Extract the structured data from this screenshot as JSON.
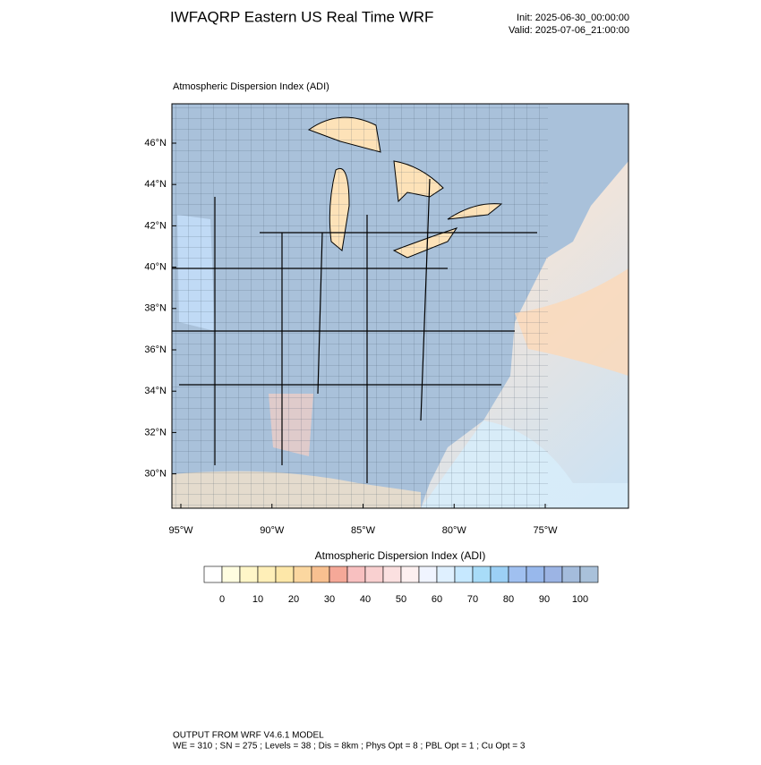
{
  "header": {
    "title": "IWFAQRP Eastern US Real Time WRF",
    "init": "Init: 2025-06-30_00:00:00",
    "valid": "Valid: 2025-07-06_21:00:00"
  },
  "map": {
    "subtitle": "Atmospheric Dispersion Index   (ADI)",
    "lat_ticks": [
      {
        "value": 46,
        "label": "46°N"
      },
      {
        "value": 44,
        "label": "44°N"
      },
      {
        "value": 42,
        "label": "42°N"
      },
      {
        "value": 40,
        "label": "40°N"
      },
      {
        "value": 38,
        "label": "38°N"
      },
      {
        "value": 36,
        "label": "36°N"
      },
      {
        "value": 34,
        "label": "34°N"
      },
      {
        "value": 32,
        "label": "32°N"
      },
      {
        "value": 30,
        "label": "30°N"
      }
    ],
    "lon_ticks": [
      {
        "value": -95,
        "label": "95°W"
      },
      {
        "value": -90,
        "label": "90°W"
      },
      {
        "value": -85,
        "label": "85°W"
      },
      {
        "value": -80,
        "label": "80°W"
      },
      {
        "value": -75,
        "label": "75°W"
      }
    ]
  },
  "colorbar": {
    "title": "Atmospheric Dispersion Index  (ADI)",
    "colors": [
      "#ffffff",
      "#fffde0",
      "#fff6c8",
      "#ffefb8",
      "#fde7a8",
      "#fbd7a0",
      "#f8c090",
      "#f5a898",
      "#f8c0c0",
      "#f9d0d0",
      "#fbe0e0",
      "#fdf0f0",
      "#f0f4ff",
      "#dff0ff",
      "#c6e8ff",
      "#a8dcf8",
      "#9cd0f5",
      "#a0c0f0",
      "#98b8ec",
      "#9cb4e4",
      "#a4bcdc",
      "#a9c1da"
    ],
    "ticks": [
      0,
      10,
      20,
      30,
      40,
      50,
      60,
      70,
      80,
      90,
      100
    ]
  },
  "footer": {
    "line1": "OUTPUT FROM WRF V4.6.1 MODEL",
    "line2": "WE = 310 ; SN = 275 ; Levels = 38 ; Dis = 8km ; Phys Opt = 8 ; PBL Opt = 1 ; Cu Opt = 3"
  }
}
